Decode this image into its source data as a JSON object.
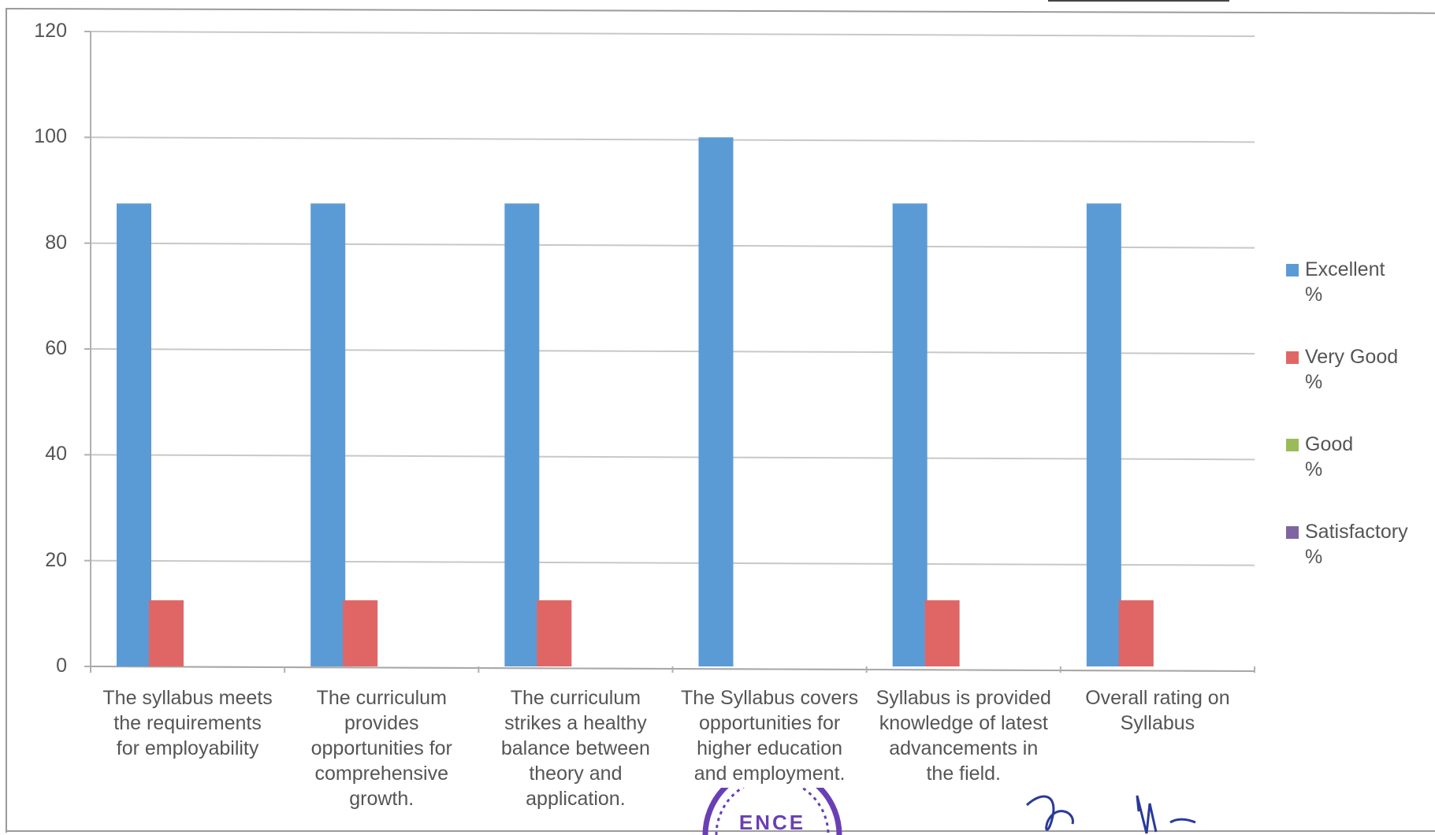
{
  "chart_data": {
    "type": "bar",
    "categories": [
      "The syllabus meets the requirements for employability",
      "The curriculum provides opportunities for comprehensive growth.",
      "The curriculum strikes a healthy balance between theory and application.",
      "The Syllabus covers opportunities for higher education and employment.",
      "Syllabus is provided knowledge of latest advancements in the field.",
      "Overall rating on Syllabus"
    ],
    "category_lines": [
      [
        "The syllabus meets",
        "the requirements",
        "for employability"
      ],
      [
        "The curriculum",
        "provides",
        "opportunities for",
        "comprehensive",
        "growth."
      ],
      [
        "The curriculum",
        "strikes a healthy",
        "balance between",
        "theory and",
        "application."
      ],
      [
        "The Syllabus covers",
        "opportunities for",
        "higher education",
        "and employment."
      ],
      [
        "Syllabus is provided",
        "knowledge of latest",
        "advancements in",
        "the field."
      ],
      [
        "Overall rating on",
        "Syllabus"
      ]
    ],
    "series": [
      {
        "name": "Excellent %",
        "name_lines": [
          "Excellent",
          "%"
        ],
        "color": "#5b9bd5",
        "values": [
          87.5,
          87.5,
          87.5,
          100,
          87.5,
          87.5
        ]
      },
      {
        "name": "Very Good %",
        "name_lines": [
          "Very Good",
          "%"
        ],
        "color": "#e06666",
        "values": [
          12.5,
          12.5,
          12.5,
          0,
          12.5,
          12.5
        ]
      },
      {
        "name": "Good %",
        "name_lines": [
          "Good",
          "%"
        ],
        "color": "#9bbb59",
        "values": [
          0,
          0,
          0,
          0,
          0,
          0
        ]
      },
      {
        "name": "Satisfactory %",
        "name_lines": [
          "Satisfactory",
          "%"
        ],
        "color": "#8064a2",
        "values": [
          0,
          0,
          0,
          0,
          0,
          0
        ]
      }
    ],
    "yticks": [
      "0",
      "20",
      "40",
      "60",
      "80",
      "100",
      "120"
    ],
    "ylim": [
      0,
      120
    ],
    "grid": true,
    "legend_position": "right",
    "title": "",
    "xlabel": "",
    "ylabel": ""
  },
  "stamp": {
    "visible_text": "ENCE",
    "color": "#6a3fb5"
  },
  "signature": {
    "color": "#2a3a9a"
  }
}
